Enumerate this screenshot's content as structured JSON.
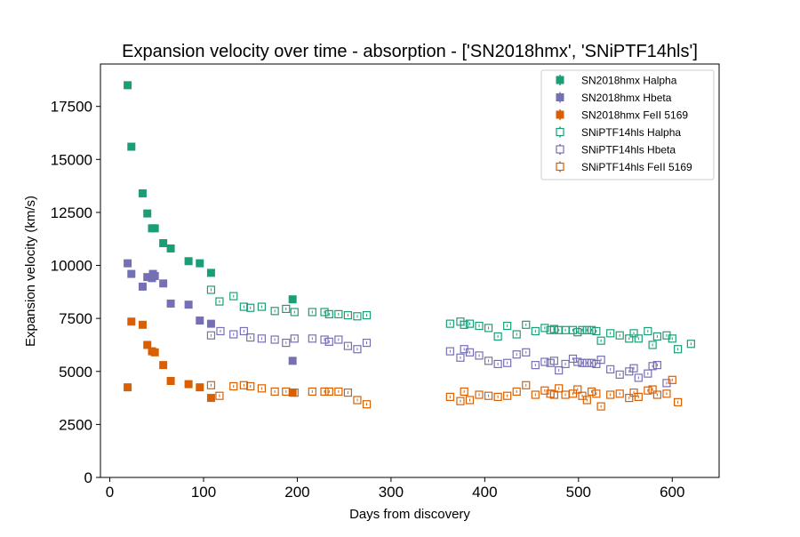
{
  "chart_data": {
    "type": "scatter",
    "title": "Expansion velocity over time - absorption - ['SN2018hmx', 'SNiPTF14hls']",
    "xlabel": "Days from discovery",
    "ylabel": "Expansion velocity (km/s)",
    "xlim": [
      -10,
      650
    ],
    "ylim": [
      0,
      19500
    ],
    "xticks": [
      0,
      100,
      200,
      300,
      400,
      500,
      600
    ],
    "yticks": [
      0,
      2500,
      5000,
      7500,
      10000,
      12500,
      15000,
      17500
    ],
    "grid": false,
    "legend_position": "top-right",
    "series": [
      {
        "name": "SN2018hmx Halpha",
        "color": "#1b9e77",
        "marker": "filled-square",
        "x": [
          19,
          23,
          35,
          40,
          45,
          48,
          57,
          65,
          84,
          96,
          108,
          195
        ],
        "y": [
          18500,
          15600,
          13400,
          12450,
          11750,
          11750,
          11050,
          10800,
          10200,
          10100,
          9650,
          8400
        ]
      },
      {
        "name": "SN2018hmx Hbeta",
        "color": "#7570b3",
        "marker": "filled-square",
        "x": [
          19,
          23,
          35,
          40,
          45,
          46,
          48,
          57,
          65,
          84,
          96,
          108,
          195
        ],
        "y": [
          10100,
          9600,
          9000,
          9450,
          9400,
          9600,
          9500,
          9150,
          8200,
          8150,
          7400,
          7250,
          5500
        ]
      },
      {
        "name": "SN2018hmx FeII 5169",
        "color": "#d95f02",
        "marker": "filled-square",
        "x": [
          19,
          23,
          35,
          40,
          45,
          48,
          57,
          65,
          84,
          96,
          108,
          195
        ],
        "y": [
          4250,
          7350,
          7200,
          6250,
          5950,
          5900,
          5300,
          4550,
          4400,
          4250,
          3750,
          4000
        ]
      },
      {
        "name": "SNiPTF14hls Halpha",
        "color": "#1b9e77",
        "marker": "open-square",
        "x": [
          108,
          117,
          132,
          143,
          150,
          162,
          176,
          188,
          197,
          216,
          229,
          234,
          244,
          254,
          264,
          274,
          363,
          374,
          378,
          384,
          394,
          404,
          414,
          424,
          434,
          444,
          454,
          464,
          470,
          474,
          479,
          486,
          494,
          499,
          504,
          509,
          514,
          519,
          524,
          534,
          544,
          554,
          559,
          564,
          574,
          579,
          584,
          594,
          600,
          606,
          620
        ],
        "y": [
          8850,
          8300,
          8550,
          8050,
          8000,
          8050,
          7850,
          7950,
          7800,
          7800,
          7800,
          7700,
          7700,
          7650,
          7600,
          7650,
          7250,
          7350,
          7200,
          7250,
          7150,
          7050,
          6650,
          7150,
          6750,
          7200,
          6900,
          7050,
          6950,
          7000,
          6950,
          6950,
          6950,
          6850,
          6950,
          6950,
          6950,
          6900,
          6450,
          6800,
          6700,
          6550,
          6800,
          6550,
          6900,
          6250,
          6650,
          6700,
          6550,
          6050,
          6300
        ]
      },
      {
        "name": "SNiPTF14hls Hbeta",
        "color": "#7570b3",
        "marker": "open-square",
        "x": [
          108,
          118,
          132,
          143,
          150,
          162,
          176,
          188,
          197,
          216,
          229,
          234,
          244,
          254,
          264,
          274,
          363,
          374,
          378,
          384,
          394,
          404,
          414,
          424,
          434,
          444,
          454,
          464,
          470,
          474,
          479,
          486,
          494,
          499,
          504,
          509,
          514,
          519,
          524,
          534,
          544,
          554,
          559,
          564,
          574,
          579,
          584,
          594
        ],
        "y": [
          6700,
          6900,
          6750,
          6900,
          6600,
          6550,
          6500,
          6350,
          6550,
          6550,
          6500,
          6400,
          6500,
          6200,
          6050,
          6350,
          5950,
          5650,
          6050,
          5900,
          5750,
          5500,
          5350,
          5400,
          5800,
          5900,
          5300,
          5450,
          5400,
          5500,
          5050,
          5350,
          5600,
          5450,
          5400,
          5400,
          5400,
          5350,
          5550,
          5100,
          4850,
          5000,
          5150,
          4700,
          4900,
          5250,
          5300,
          4450
        ]
      },
      {
        "name": "SNiPTF14hls FeII 5169",
        "color": "#d95f02",
        "marker": "open-square",
        "x": [
          108,
          117,
          132,
          143,
          150,
          162,
          176,
          188,
          197,
          216,
          229,
          234,
          244,
          254,
          264,
          274,
          363,
          374,
          378,
          384,
          394,
          404,
          414,
          424,
          434,
          444,
          454,
          464,
          470,
          474,
          479,
          486,
          494,
          499,
          504,
          509,
          514,
          519,
          524,
          534,
          544,
          554,
          559,
          564,
          574,
          579,
          584,
          594,
          600,
          606
        ],
        "y": [
          4350,
          3850,
          4300,
          4350,
          4300,
          4200,
          4050,
          4050,
          4000,
          4050,
          4050,
          4050,
          4050,
          4000,
          3650,
          3450,
          3800,
          3600,
          4050,
          3650,
          3900,
          3850,
          3800,
          3850,
          4050,
          4350,
          3900,
          4100,
          3950,
          3900,
          4200,
          3900,
          3950,
          4150,
          3850,
          3650,
          4050,
          3950,
          3350,
          3900,
          3950,
          3750,
          4000,
          3800,
          4100,
          4150,
          3900,
          3950,
          4600,
          3550
        ]
      }
    ]
  }
}
